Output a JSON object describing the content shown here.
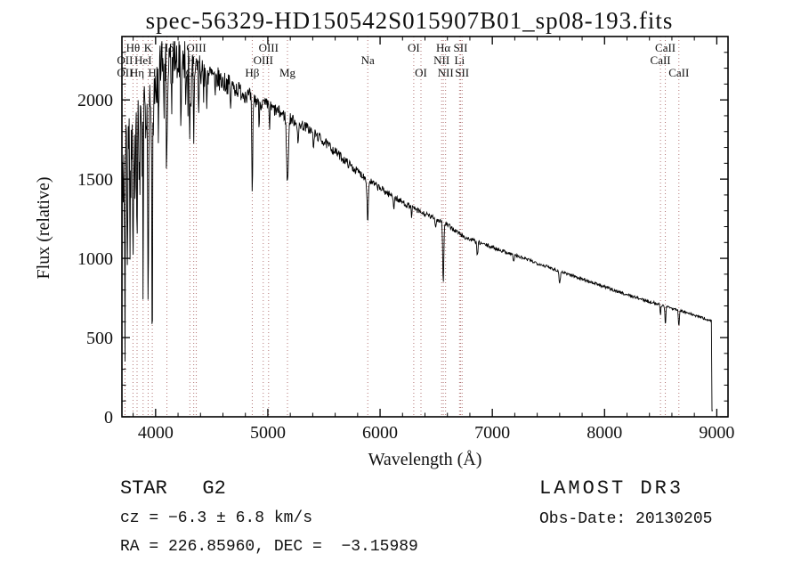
{
  "chart_data": {
    "type": "line",
    "title": "spec-56329-HD150542S015907B01_sp08-193.fits",
    "xlabel": "Wavelength (Å)",
    "ylabel": "Flux (relative)",
    "xlim": [
      3700,
      9100
    ],
    "ylim": [
      0,
      2400
    ],
    "xticks": [
      4000,
      5000,
      6000,
      7000,
      8000,
      9000
    ],
    "yticks": [
      0,
      500,
      1000,
      1500,
      2000
    ],
    "x_minor_step": 200,
    "y_minor_step": 100,
    "line_color": "#000000",
    "marker_color": "#aa6666",
    "grid": false,
    "sample_step": 4,
    "noise_seed": 7,
    "spectrum_end": 8955,
    "end_drop_to": 35,
    "continuum": [
      [
        3700,
        1480
      ],
      [
        3760,
        1620
      ],
      [
        3820,
        1720
      ],
      [
        3880,
        1800
      ],
      [
        3940,
        1900
      ],
      [
        4000,
        2060
      ],
      [
        4060,
        2180
      ],
      [
        4120,
        2230
      ],
      [
        4200,
        2270
      ],
      [
        4300,
        2230
      ],
      [
        4420,
        2180
      ],
      [
        4560,
        2130
      ],
      [
        4700,
        2080
      ],
      [
        4860,
        2010
      ],
      [
        5000,
        1960
      ],
      [
        5180,
        1890
      ],
      [
        5360,
        1820
      ],
      [
        5560,
        1700
      ],
      [
        5760,
        1570
      ],
      [
        5960,
        1460
      ],
      [
        6160,
        1370
      ],
      [
        6360,
        1290
      ],
      [
        6560,
        1230
      ],
      [
        6760,
        1130
      ],
      [
        6960,
        1080
      ],
      [
        7160,
        1030
      ],
      [
        7360,
        980
      ],
      [
        7560,
        930
      ],
      [
        7760,
        880
      ],
      [
        7960,
        830
      ],
      [
        8160,
        780
      ],
      [
        8360,
        735
      ],
      [
        8560,
        695
      ],
      [
        8760,
        650
      ],
      [
        8955,
        605
      ]
    ],
    "noise_profile": [
      [
        3700,
        300
      ],
      [
        3800,
        280
      ],
      [
        3900,
        260
      ],
      [
        4000,
        230
      ],
      [
        4100,
        190
      ],
      [
        4200,
        150
      ],
      [
        4350,
        110
      ],
      [
        4500,
        80
      ],
      [
        4700,
        60
      ],
      [
        5000,
        45
      ],
      [
        5400,
        32
      ],
      [
        5800,
        26
      ],
      [
        6200,
        20
      ],
      [
        6600,
        16
      ],
      [
        7000,
        12
      ],
      [
        7600,
        10
      ],
      [
        8955,
        9
      ]
    ],
    "absorption_lines": [
      [
        3727,
        1250,
        3
      ],
      [
        3750,
        800,
        3
      ],
      [
        3770,
        600,
        3
      ],
      [
        3798,
        750,
        4
      ],
      [
        3820,
        500,
        3
      ],
      [
        3835,
        850,
        4
      ],
      [
        3860,
        400,
        3
      ],
      [
        3889,
        850,
        4
      ],
      [
        3912,
        350,
        3
      ],
      [
        3933,
        1450,
        5
      ],
      [
        3970,
        1350,
        5
      ],
      [
        4026,
        450,
        4
      ],
      [
        4077,
        300,
        3
      ],
      [
        4101,
        750,
        5
      ],
      [
        4144,
        350,
        4
      ],
      [
        4178,
        250,
        3
      ],
      [
        4226,
        400,
        4
      ],
      [
        4270,
        250,
        3
      ],
      [
        4305,
        380,
        7
      ],
      [
        4340,
        520,
        5
      ],
      [
        4383,
        330,
        4
      ],
      [
        4455,
        200,
        4
      ],
      [
        4531,
        180,
        4
      ],
      [
        4668,
        180,
        4
      ],
      [
        4861,
        650,
        6
      ],
      [
        4921,
        150,
        4
      ],
      [
        5015,
        130,
        4
      ],
      [
        5175,
        420,
        11
      ],
      [
        5270,
        160,
        6
      ],
      [
        5406,
        120,
        5
      ],
      [
        5890,
        260,
        8
      ],
      [
        6122,
        70,
        5
      ],
      [
        6280,
        50,
        5
      ],
      [
        6495,
        60,
        5
      ],
      [
        6563,
        390,
        7
      ],
      [
        6867,
        90,
        7
      ],
      [
        7190,
        40,
        7
      ],
      [
        7600,
        70,
        9
      ],
      [
        8498,
        70,
        5
      ],
      [
        8542,
        110,
        6
      ],
      [
        8662,
        95,
        6
      ]
    ],
    "spectral_markers": [
      {
        "wavelength": 3798,
        "label": "Hθ",
        "row": 1
      },
      {
        "wavelength": 3933,
        "label": "K",
        "row": 1
      },
      {
        "wavelength": 4101,
        "label": "Hδ",
        "row": 1
      },
      {
        "wavelength": 4363,
        "label": "OIII",
        "row": 1
      },
      {
        "wavelength": 5007,
        "label": "OIII",
        "row": 1
      },
      {
        "wavelength": 6300,
        "label": "OI",
        "row": 1
      },
      {
        "wavelength": 6563,
        "label": "Hα",
        "row": 1
      },
      {
        "wavelength": 6717,
        "label": "SII",
        "row": 1
      },
      {
        "wavelength": 8542,
        "label": "CaII",
        "row": 1
      },
      {
        "wavelength": 3727,
        "label": "OII",
        "row": 2
      },
      {
        "wavelength": 3889,
        "label": "HeI",
        "row": 2
      },
      {
        "wavelength": 4340,
        "label": "Hγ",
        "row": 2
      },
      {
        "wavelength": 4959,
        "label": "OIII",
        "row": 2
      },
      {
        "wavelength": 5890,
        "label": "Na",
        "row": 2
      },
      {
        "wavelength": 6548,
        "label": "NII",
        "row": 2
      },
      {
        "wavelength": 6708,
        "label": "Li",
        "row": 2
      },
      {
        "wavelength": 8498,
        "label": "CaII",
        "row": 2
      },
      {
        "wavelength": 3727,
        "label": "OII",
        "row": 3
      },
      {
        "wavelength": 3835,
        "label": "Hη",
        "row": 3
      },
      {
        "wavelength": 3970,
        "label": "H",
        "row": 3
      },
      {
        "wavelength": 4305,
        "label": "G",
        "row": 3
      },
      {
        "wavelength": 4861,
        "label": "Hβ",
        "row": 3
      },
      {
        "wavelength": 5175,
        "label": "Mg",
        "row": 3
      },
      {
        "wavelength": 6364,
        "label": "OI",
        "row": 3
      },
      {
        "wavelength": 6584,
        "label": "NII",
        "row": 3
      },
      {
        "wavelength": 6731,
        "label": "SII",
        "row": 3
      },
      {
        "wavelength": 8662,
        "label": "CaII",
        "row": 3
      }
    ]
  },
  "annotations": {
    "class_line": "STAR   G2",
    "cz_line": "cz = −6.3 ± 6.8 km/s",
    "radec_line": "RA = 226.85960, DEC =  −3.15989",
    "survey": "LAMOST DR3",
    "obs_date": "Obs-Date: 20130205"
  }
}
